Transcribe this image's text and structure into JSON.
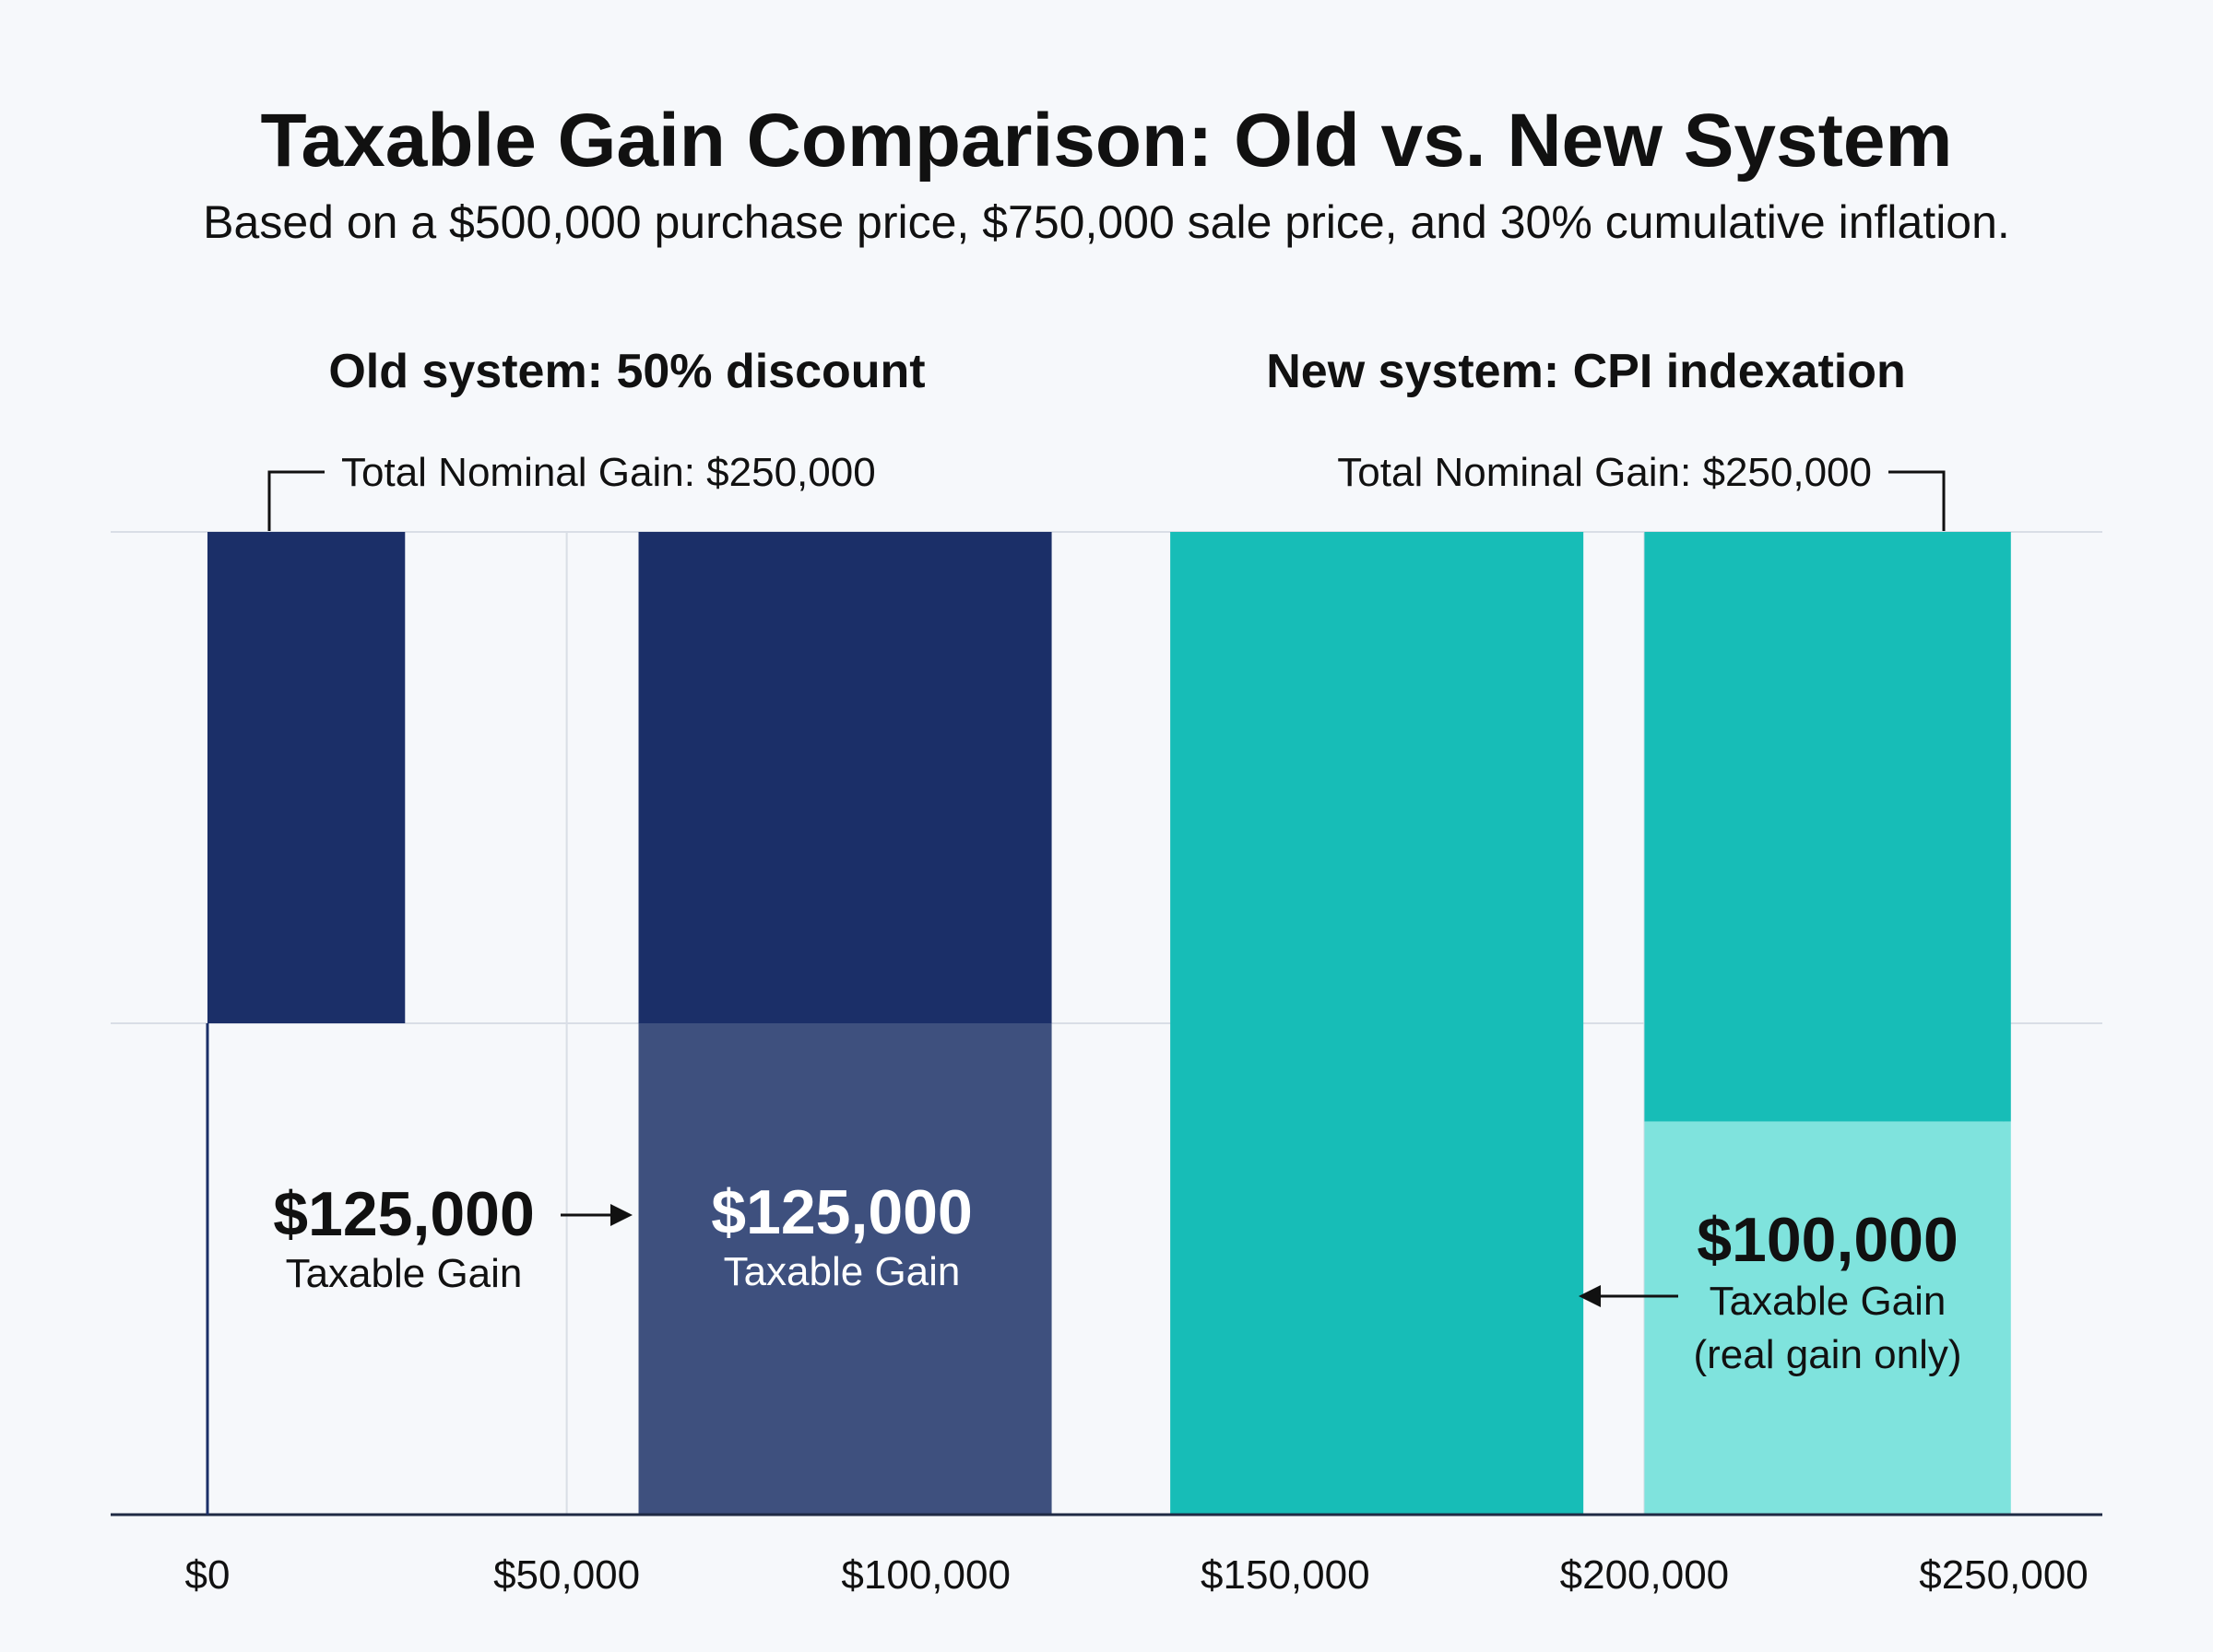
{
  "chart_data": {
    "type": "bar",
    "title": "Taxable Gain Comparison: Old vs. New System",
    "subtitle": "Based on a $500,000 purchase price, $750,000 sale price, and 30% cumulative inflation.",
    "panels": [
      {
        "title": "Old system: 50% discount",
        "bracket_label": "Total Nominal Gain: $250,000"
      },
      {
        "title": "New system: CPI indexation",
        "bracket_label": "Total Nominal Gain: $250,000"
      }
    ],
    "x_axis": {
      "ticks": [
        0,
        50000,
        100000,
        150000,
        200000,
        250000
      ],
      "tick_labels": [
        "$0",
        "$50,000",
        "$100,000",
        "$150,000",
        "$200,000",
        "$250,000"
      ],
      "xlim": [
        0,
        250000
      ]
    },
    "ylim": [
      0,
      250000
    ],
    "grid": true,
    "bars": [
      {
        "x_start": 0,
        "x_end": 27500,
        "y_bottom": 125000,
        "y_top": 250000,
        "color": "#1b2f68"
      },
      {
        "x_start": 60000,
        "x_end": 117500,
        "y_bottom": 125000,
        "y_top": 250000,
        "color": "#1b2f68"
      },
      {
        "x_start": 60000,
        "x_end": 117500,
        "y_bottom": 0,
        "y_top": 125000,
        "color": "#3e507e"
      },
      {
        "x_start": 134000,
        "x_end": 191500,
        "y_bottom": 0,
        "y_top": 250000,
        "color": "#17bdb7"
      },
      {
        "x_start": 200000,
        "x_end": 251000,
        "y_bottom": 100000,
        "y_top": 250000,
        "color": "#17bdb7"
      },
      {
        "x_start": 200000,
        "x_end": 251000,
        "y_bottom": 0,
        "y_top": 100000,
        "color": "#7fe3dd"
      }
    ],
    "annotations": [
      {
        "value": "$125,000",
        "label": "Taxable Gain"
      },
      {
        "value": "$125,000",
        "label": "Taxable Gain"
      },
      {
        "value": "$100,000",
        "label": "Taxable Gain",
        "label2": "(real gain only)"
      }
    ]
  }
}
